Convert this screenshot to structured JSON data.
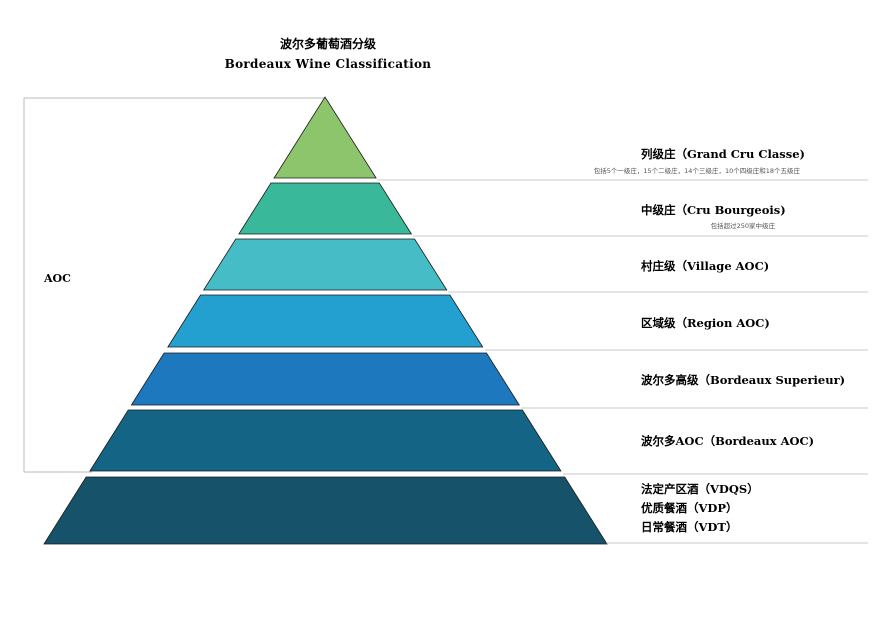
{
  "title": {
    "zh": "波尔多葡萄酒分级",
    "en": "Bordeaux Wine Classification"
  },
  "group_label": "AOC",
  "tiers": [
    {
      "label": "列级庄（Grand Cru Classe)",
      "note": "包括5个一级庄，15个二级庄，14个三级庄，10个四级庄和18个五级庄",
      "color": "#8dc56c"
    },
    {
      "label": "中级庄（Cru Bourgeois)",
      "note": "包括超过250家中级庄",
      "color": "#39b99a"
    },
    {
      "label": "村庄级（Village AOC)",
      "note": "",
      "color": "#46bdc6"
    },
    {
      "label": "区域级（Region AOC)",
      "note": "",
      "color": "#23a0d0"
    },
    {
      "label": "波尔多高级（Bordeaux Superieur)",
      "note": "",
      "color": "#1e78bd"
    },
    {
      "label": "波尔多AOC（Bordeaux AOC)",
      "note": "",
      "color": "#136485"
    },
    {
      "label": "",
      "note": "",
      "color": "#17526b",
      "lines": [
        "法定产区酒（VDQS）",
        "优质餐酒（VDP）",
        "日常餐酒（VDT）"
      ]
    }
  ]
}
